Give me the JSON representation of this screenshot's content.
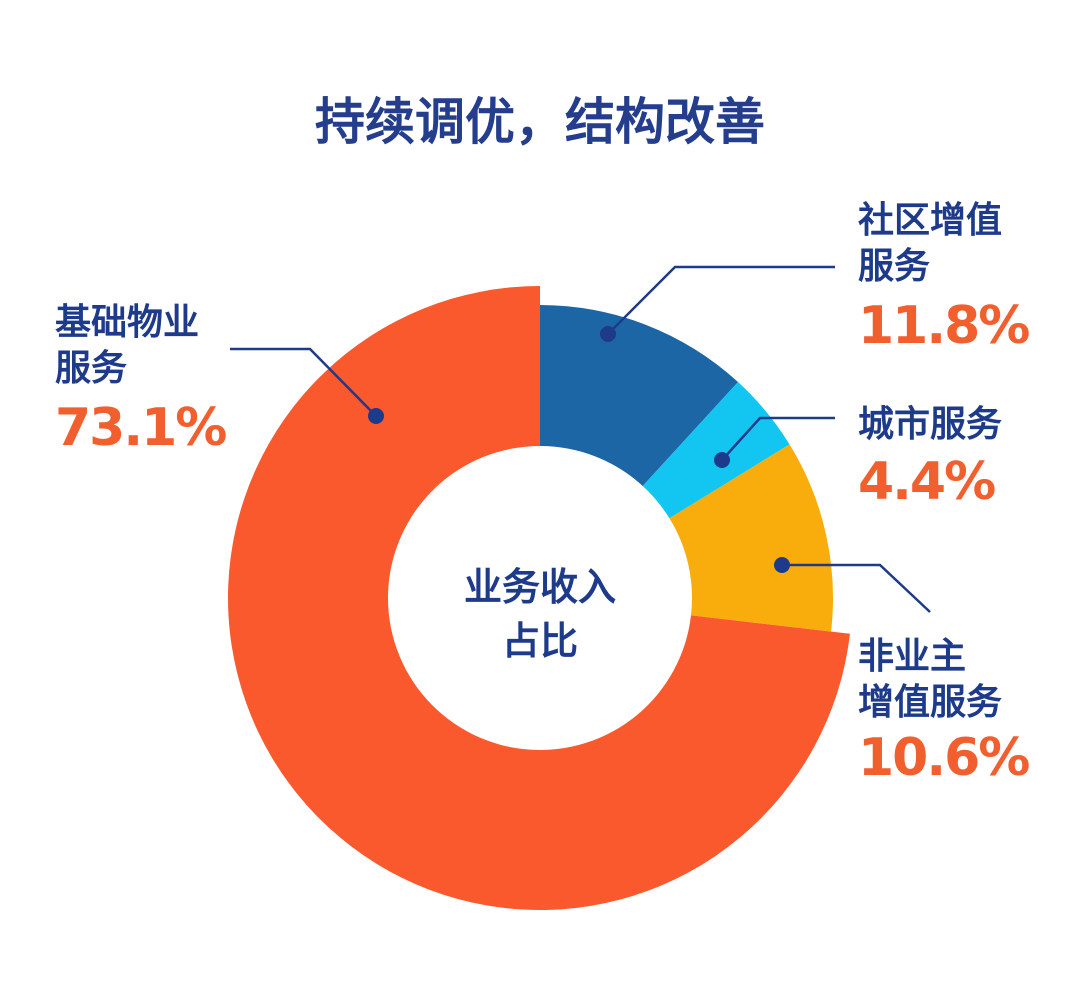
{
  "chart_data": {
    "type": "donut",
    "title": "持续调优，结构改善",
    "center_label": "业务收入\n占比",
    "categories": [
      "社区增值\n服务",
      "城市服务",
      "非业主\n增值服务",
      "基础物业\n服务"
    ],
    "values": [
      11.8,
      4.4,
      10.6,
      73.1
    ],
    "value_labels": [
      "11.8%",
      "4.4%",
      "10.6%",
      "73.1%"
    ],
    "colors": [
      "#1d66a5",
      "#13c6f1",
      "#f9ad0c",
      "#fa582d"
    ]
  }
}
